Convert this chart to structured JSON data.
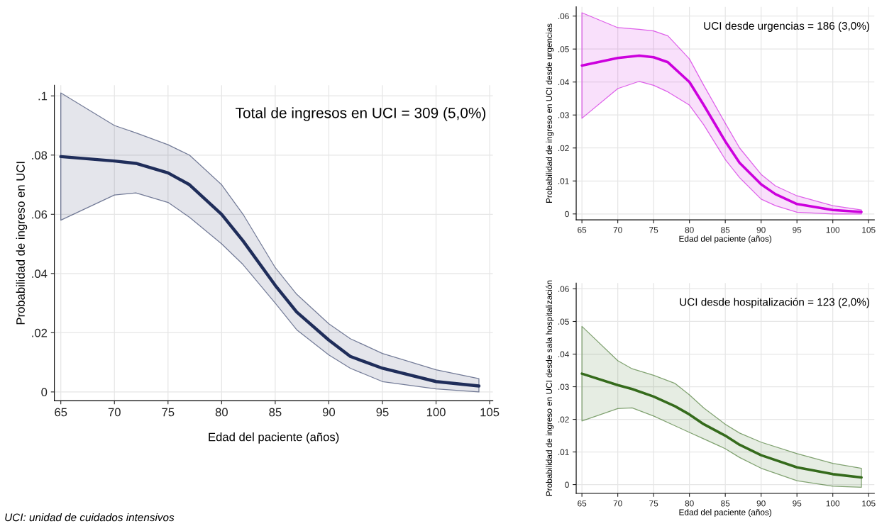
{
  "chart_data": [
    {
      "type": "line",
      "xlabel": "Edad del paciente (años)",
      "ylabel": "Probabilidad de ingreso en UCI",
      "annotations": [
        "Total de ingresos en UCI = 309 (5,0%)",
        "UCI: unidad de cuidados intensivos"
      ],
      "xlim": [
        64.4,
        105.3
      ],
      "ylim": [
        -0.003,
        0.1036
      ],
      "xticks": [
        65,
        70,
        75,
        80,
        85,
        90,
        95,
        100,
        105
      ],
      "yticks": [
        {
          "value": 0,
          "label": "0"
        },
        {
          "value": 0.02,
          "label": ".02"
        },
        {
          "value": 0.04,
          "label": ".04"
        },
        {
          "value": 0.06,
          "label": ".06"
        },
        {
          "value": 0.08,
          "label": ".08"
        },
        {
          "value": 0.1,
          "label": ".1"
        }
      ],
      "grid": true,
      "marker": "none",
      "line_style": "solid",
      "series": [
        {
          "color": "#1f2d5a",
          "x": [
            65,
            70,
            72,
            75,
            77,
            80,
            82,
            85,
            87,
            90,
            92,
            95,
            100,
            104
          ],
          "values": [
            0.0795,
            0.078,
            0.0772,
            0.074,
            0.07,
            0.06,
            0.051,
            0.036,
            0.027,
            0.0175,
            0.012,
            0.008,
            0.0035,
            0.002
          ],
          "lower": [
            0.058,
            0.0665,
            0.0672,
            0.064,
            0.059,
            0.05,
            0.043,
            0.03,
            0.021,
            0.0125,
            0.008,
            0.0035,
            0.001,
            0.0
          ],
          "upper": [
            0.101,
            0.09,
            0.0875,
            0.0835,
            0.08,
            0.07,
            0.06,
            0.042,
            0.033,
            0.023,
            0.018,
            0.013,
            0.0075,
            0.0045
          ]
        }
      ]
    },
    {
      "type": "line",
      "xlabel": "Edad del paciente (años)",
      "ylabel": "Probabilidad de ingreso en UCI desde urgencias",
      "annotations": [
        "UCI desde urgencias = 186 (3,0%)"
      ],
      "xlim": [
        64.2,
        105.8
      ],
      "ylim": [
        -0.0018,
        0.0628
      ],
      "xticks": [
        65,
        70,
        75,
        80,
        85,
        90,
        95,
        100,
        105
      ],
      "yticks": [
        {
          "value": 0,
          "label": "0"
        },
        {
          "value": 0.01,
          "label": ".01"
        },
        {
          "value": 0.02,
          "label": ".02"
        },
        {
          "value": 0.03,
          "label": ".03"
        },
        {
          "value": 0.04,
          "label": ".04"
        },
        {
          "value": 0.05,
          "label": ".05"
        },
        {
          "value": 0.06,
          "label": ".06"
        }
      ],
      "grid": true,
      "marker": "none",
      "line_style": "solid",
      "series": [
        {
          "color": "#cc00dd",
          "x": [
            65,
            70,
            73,
            75,
            77,
            80,
            82,
            85,
            87,
            90,
            92,
            95,
            100,
            104
          ],
          "values": [
            0.045,
            0.0473,
            0.048,
            0.0475,
            0.046,
            0.04,
            0.033,
            0.022,
            0.0155,
            0.009,
            0.006,
            0.003,
            0.0012,
            0.0006
          ],
          "lower": [
            0.029,
            0.038,
            0.0402,
            0.039,
            0.037,
            0.033,
            0.027,
            0.0165,
            0.011,
            0.0045,
            0.0025,
            0.0005,
            0.0,
            0.0
          ],
          "upper": [
            0.061,
            0.0565,
            0.056,
            0.0555,
            0.054,
            0.047,
            0.039,
            0.0275,
            0.02,
            0.012,
            0.0085,
            0.0055,
            0.0025,
            0.0012
          ]
        }
      ]
    },
    {
      "type": "line",
      "xlabel": "Edad del paciente (años)",
      "ylabel": "Probabilidad de ingreso en UCI desde sala hospitalización",
      "annotations": [
        "UCI desde hospitalización = 123 (2,0%)"
      ],
      "xlim": [
        64.2,
        105.8
      ],
      "ylim": [
        -0.0027,
        0.0618
      ],
      "xticks": [
        65,
        70,
        75,
        80,
        85,
        90,
        95,
        100,
        105
      ],
      "yticks": [
        {
          "value": 0,
          "label": "0"
        },
        {
          "value": 0.01,
          "label": ".01"
        },
        {
          "value": 0.02,
          "label": ".02"
        },
        {
          "value": 0.03,
          "label": ".03"
        },
        {
          "value": 0.04,
          "label": ".04"
        },
        {
          "value": 0.05,
          "label": ".05"
        },
        {
          "value": 0.06,
          "label": ".06"
        }
      ],
      "grid": true,
      "marker": "none",
      "line_style": "solid",
      "series": [
        {
          "color": "#356b1c",
          "x": [
            65,
            70,
            72,
            75,
            78,
            80,
            82,
            85,
            87,
            90,
            95,
            100,
            104
          ],
          "values": [
            0.034,
            0.0305,
            0.0293,
            0.027,
            0.024,
            0.0215,
            0.0185,
            0.015,
            0.0122,
            0.009,
            0.0053,
            0.0032,
            0.0022
          ],
          "lower": [
            0.0195,
            0.0233,
            0.0235,
            0.021,
            0.018,
            0.016,
            0.014,
            0.011,
            0.0083,
            0.005,
            0.0012,
            -0.0005,
            -0.0008
          ],
          "upper": [
            0.0485,
            0.038,
            0.0355,
            0.0335,
            0.031,
            0.0275,
            0.0235,
            0.0185,
            0.0158,
            0.013,
            0.0095,
            0.0065,
            0.005
          ]
        }
      ]
    }
  ]
}
